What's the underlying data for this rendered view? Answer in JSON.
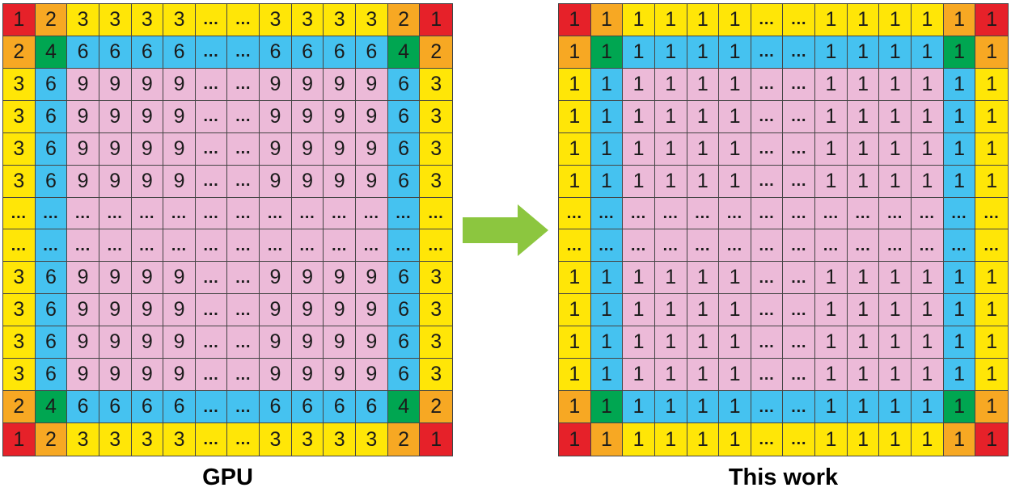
{
  "colors": {
    "R": "#e62129",
    "O": "#f7a823",
    "Y": "#ffe607",
    "G": "#00a651",
    "B": "#45c2f0",
    "P": "#ecbad8",
    "line": "#454545",
    "cell_text": "#1b1b1b"
  },
  "arrow": {
    "icon": "right-arrow-icon",
    "color": "#8cc63f"
  },
  "panels": [
    {
      "id": "gpu",
      "label": "GPU",
      "grid": [
        [
          "1:R",
          "2:O",
          "3:Y",
          "3:Y",
          "3:Y",
          "3:Y",
          "…:Y",
          "…:Y",
          "3:Y",
          "3:Y",
          "3:Y",
          "3:Y",
          "2:O",
          "1:R"
        ],
        [
          "2:O",
          "4:G",
          "6:B",
          "6:B",
          "6:B",
          "6:B",
          "…:B",
          "…:B",
          "6:B",
          "6:B",
          "6:B",
          "6:B",
          "4:G",
          "2:O"
        ],
        [
          "3:Y",
          "6:B",
          "9:P",
          "9:P",
          "9:P",
          "9:P",
          "…:P",
          "…:P",
          "9:P",
          "9:P",
          "9:P",
          "9:P",
          "6:B",
          "3:Y"
        ],
        [
          "3:Y",
          "6:B",
          "9:P",
          "9:P",
          "9:P",
          "9:P",
          "…:P",
          "…:P",
          "9:P",
          "9:P",
          "9:P",
          "9:P",
          "6:B",
          "3:Y"
        ],
        [
          "3:Y",
          "6:B",
          "9:P",
          "9:P",
          "9:P",
          "9:P",
          "…:P",
          "…:P",
          "9:P",
          "9:P",
          "9:P",
          "9:P",
          "6:B",
          "3:Y"
        ],
        [
          "3:Y",
          "6:B",
          "9:P",
          "9:P",
          "9:P",
          "9:P",
          "…:P",
          "…:P",
          "9:P",
          "9:P",
          "9:P",
          "9:P",
          "6:B",
          "3:Y"
        ],
        [
          "…:Y",
          "…:B",
          "…:P",
          "…:P",
          "…:P",
          "…:P",
          "…:P",
          "…:P",
          "…:P",
          "…:P",
          "…:P",
          "…:P",
          "…:B",
          "…:Y"
        ],
        [
          "…:Y",
          "…:B",
          "…:P",
          "…:P",
          "…:P",
          "…:P",
          "…:P",
          "…:P",
          "…:P",
          "…:P",
          "…:P",
          "…:P",
          "…:B",
          "…:Y"
        ],
        [
          "3:Y",
          "6:B",
          "9:P",
          "9:P",
          "9:P",
          "9:P",
          "…:P",
          "…:P",
          "9:P",
          "9:P",
          "9:P",
          "9:P",
          "6:B",
          "3:Y"
        ],
        [
          "3:Y",
          "6:B",
          "9:P",
          "9:P",
          "9:P",
          "9:P",
          "…:P",
          "…:P",
          "9:P",
          "9:P",
          "9:P",
          "9:P",
          "6:B",
          "3:Y"
        ],
        [
          "3:Y",
          "6:B",
          "9:P",
          "9:P",
          "9:P",
          "9:P",
          "…:P",
          "…:P",
          "9:P",
          "9:P",
          "9:P",
          "9:P",
          "6:B",
          "3:Y"
        ],
        [
          "3:Y",
          "6:B",
          "9:P",
          "9:P",
          "9:P",
          "9:P",
          "…:P",
          "…:P",
          "9:P",
          "9:P",
          "9:P",
          "9:P",
          "6:B",
          "3:Y"
        ],
        [
          "2:O",
          "4:G",
          "6:B",
          "6:B",
          "6:B",
          "6:B",
          "…:B",
          "…:B",
          "6:B",
          "6:B",
          "6:B",
          "6:B",
          "4:G",
          "2:O"
        ],
        [
          "1:R",
          "2:O",
          "3:Y",
          "3:Y",
          "3:Y",
          "3:Y",
          "…:Y",
          "…:Y",
          "3:Y",
          "3:Y",
          "3:Y",
          "3:Y",
          "2:O",
          "1:R"
        ]
      ]
    },
    {
      "id": "this-work",
      "label": "This work",
      "grid": [
        [
          "1:R",
          "1:O",
          "1:Y",
          "1:Y",
          "1:Y",
          "1:Y",
          "…:Y",
          "…:Y",
          "1:Y",
          "1:Y",
          "1:Y",
          "1:Y",
          "1:O",
          "1:R"
        ],
        [
          "1:O",
          "1:G",
          "1:B",
          "1:B",
          "1:B",
          "1:B",
          "…:B",
          "…:B",
          "1:B",
          "1:B",
          "1:B",
          "1:B",
          "1:G",
          "1:O"
        ],
        [
          "1:Y",
          "1:B",
          "1:P",
          "1:P",
          "1:P",
          "1:P",
          "…:P",
          "…:P",
          "1:P",
          "1:P",
          "1:P",
          "1:P",
          "1:B",
          "1:Y"
        ],
        [
          "1:Y",
          "1:B",
          "1:P",
          "1:P",
          "1:P",
          "1:P",
          "…:P",
          "…:P",
          "1:P",
          "1:P",
          "1:P",
          "1:P",
          "1:B",
          "1:Y"
        ],
        [
          "1:Y",
          "1:B",
          "1:P",
          "1:P",
          "1:P",
          "1:P",
          "…:P",
          "…:P",
          "1:P",
          "1:P",
          "1:P",
          "1:P",
          "1:B",
          "1:Y"
        ],
        [
          "1:Y",
          "1:B",
          "1:P",
          "1:P",
          "1:P",
          "1:P",
          "…:P",
          "…:P",
          "1:P",
          "1:P",
          "1:P",
          "1:P",
          "1:B",
          "1:Y"
        ],
        [
          "…:Y",
          "…:B",
          "…:P",
          "…:P",
          "…:P",
          "…:P",
          "…:P",
          "…:P",
          "…:P",
          "…:P",
          "…:P",
          "…:P",
          "…:B",
          "…:Y"
        ],
        [
          "…:Y",
          "…:B",
          "…:P",
          "…:P",
          "…:P",
          "…:P",
          "…:P",
          "…:P",
          "…:P",
          "…:P",
          "…:P",
          "…:P",
          "…:B",
          "…:Y"
        ],
        [
          "1:Y",
          "1:B",
          "1:P",
          "1:P",
          "1:P",
          "1:P",
          "…:P",
          "…:P",
          "1:P",
          "1:P",
          "1:P",
          "1:P",
          "1:B",
          "1:Y"
        ],
        [
          "1:Y",
          "1:B",
          "1:P",
          "1:P",
          "1:P",
          "1:P",
          "…:P",
          "…:P",
          "1:P",
          "1:P",
          "1:P",
          "1:P",
          "1:B",
          "1:Y"
        ],
        [
          "1:Y",
          "1:B",
          "1:P",
          "1:P",
          "1:P",
          "1:P",
          "…:P",
          "…:P",
          "1:P",
          "1:P",
          "1:P",
          "1:P",
          "1:B",
          "1:Y"
        ],
        [
          "1:Y",
          "1:B",
          "1:P",
          "1:P",
          "1:P",
          "1:P",
          "…:P",
          "…:P",
          "1:P",
          "1:P",
          "1:P",
          "1:P",
          "1:B",
          "1:Y"
        ],
        [
          "1:O",
          "1:G",
          "1:B",
          "1:B",
          "1:B",
          "1:B",
          "…:B",
          "…:B",
          "1:B",
          "1:B",
          "1:B",
          "1:B",
          "1:G",
          "1:O"
        ],
        [
          "1:R",
          "1:O",
          "1:Y",
          "1:Y",
          "1:Y",
          "1:Y",
          "…:Y",
          "…:Y",
          "1:Y",
          "1:Y",
          "1:Y",
          "1:Y",
          "1:O",
          "1:R"
        ]
      ]
    }
  ]
}
